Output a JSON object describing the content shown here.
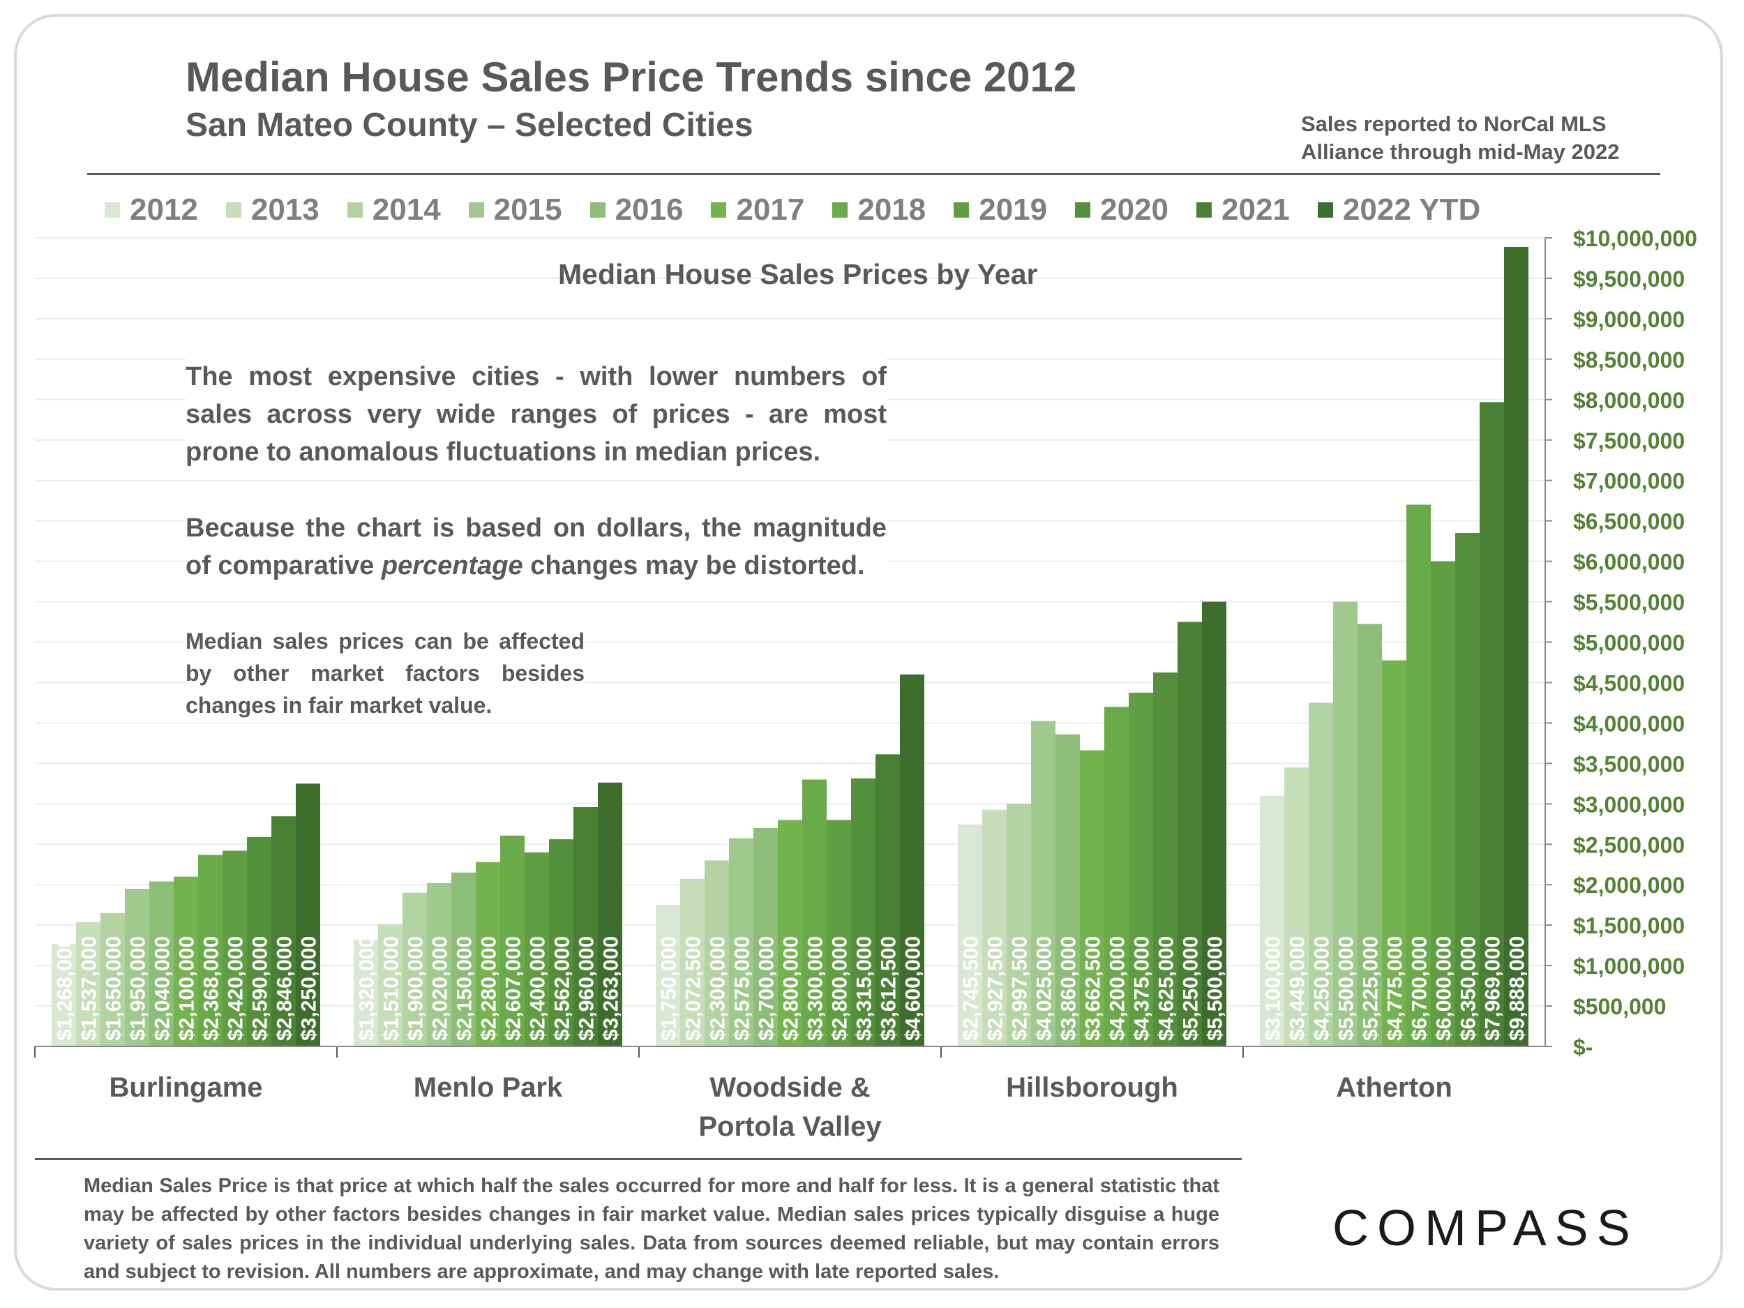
{
  "header": {
    "title": "Median House Sales Price Trends since 2012",
    "subtitle": "San Mateo County – Selected Cities",
    "source_line1": "Sales reported to NorCal MLS",
    "source_line2": "Alliance through mid-May 2022"
  },
  "notes": {
    "note1": "The most expensive cities - with lower numbers of sales across very wide ranges of prices - are most prone to anomalous fluctuations in median prices.",
    "note2_part1": "Because the chart is based on dollars, the magnitude of comparative ",
    "note2_italic": "percentage",
    "note2_part2": " changes may be distorted.",
    "note3": "Median sales prices can be affected by other market factors besides changes in fair market value."
  },
  "footnote": "Median Sales Price is that price at which half the sales occurred for more and half for less. It is a general statistic that may be affected by other factors besides changes in fair market value. Median sales prices typically disguise a huge variety of sales prices in the individual underlying sales. Data from sources deemed reliable, but may contain errors and subject to revision.  All numbers are approximate, and may change with late reported sales.",
  "logo_text": "COMPASS",
  "chart_data": {
    "type": "bar",
    "title": "Median House Sales Prices by Year",
    "categories": [
      "Burlingame",
      "Menlo Park",
      "Woodside & Portola Valley",
      "Hillsborough",
      "Atherton"
    ],
    "category_lines": [
      [
        "Burlingame"
      ],
      [
        "Menlo Park"
      ],
      [
        "Woodside &",
        "Portola Valley"
      ],
      [
        "Hillsborough"
      ],
      [
        "Atherton"
      ]
    ],
    "series": [
      {
        "name": "2012",
        "color": "#d9e8d2",
        "values": [
          1268000,
          1320000,
          1750000,
          2745500,
          3100000
        ]
      },
      {
        "name": "2013",
        "color": "#c6deba",
        "values": [
          1537000,
          1510000,
          2072500,
          2927500,
          3449000
        ]
      },
      {
        "name": "2014",
        "color": "#b3d3a3",
        "values": [
          1650000,
          1900000,
          2300000,
          2997500,
          4250000
        ]
      },
      {
        "name": "2015",
        "color": "#a0c98d",
        "values": [
          1950000,
          2020000,
          2575000,
          4025000,
          5500000
        ]
      },
      {
        "name": "2016",
        "color": "#8cbe77",
        "values": [
          2040000,
          2150000,
          2700000,
          3860000,
          5225000
        ]
      },
      {
        "name": "2017",
        "color": "#74b34f",
        "values": [
          2100000,
          2280000,
          2800000,
          3662500,
          4775000
        ]
      },
      {
        "name": "2018",
        "color": "#6aab49",
        "values": [
          2368000,
          2607000,
          3300000,
          4200000,
          6700000
        ]
      },
      {
        "name": "2019",
        "color": "#5f9e42",
        "values": [
          2420000,
          2400000,
          2800000,
          4375000,
          6000000
        ]
      },
      {
        "name": "2020",
        "color": "#548f3b",
        "values": [
          2590000,
          2562000,
          3315000,
          4625000,
          6350000
        ]
      },
      {
        "name": "2021",
        "color": "#4a8034",
        "values": [
          2846000,
          2960000,
          3612500,
          5250000,
          7969000
        ]
      },
      {
        "name": "2022 YTD",
        "color": "#3e6e2c",
        "values": [
          3250000,
          3263000,
          4600000,
          5500000,
          9888000
        ]
      }
    ],
    "data_labels": [
      [
        "$1,268,000",
        "$1,537,000",
        "$1,650,000",
        "$1,950,000",
        "$2,040,000",
        "$2,100,000",
        "$2,368,000",
        "$2,420,000",
        "$2,590,000",
        "$2,846,000",
        "$3,250,000"
      ],
      [
        "$1,320,000",
        "$1,510,000",
        "$1,900,000",
        "$2,020,000",
        "$2,150,000",
        "$2,280,000",
        "$2,607,000",
        "$2,400,000",
        "$2,562,000",
        "$2,960,000",
        "$3,263,000"
      ],
      [
        "$1,750,000",
        "$2,072,500",
        "$2,300,000",
        "$2,575,000",
        "$2,700,000",
        "$2,800,000",
        "$3,300,000",
        "$2,800,000",
        "$3,315,000",
        "$3,612,500",
        "$4,600,000"
      ],
      [
        "$2,745,500",
        "$2,927,500",
        "$2,997,500",
        "$4,025,000",
        "$3,860,000",
        "$3,662,500",
        "$4,200,000",
        "$4,375,000",
        "$4,625,000",
        "$5,250,000",
        "$5,500,000"
      ],
      [
        "$3,100,000",
        "$3,449,000",
        "$4,250,000",
        "$5,500,000",
        "$5,225,000",
        "$4,775,000",
        "$6,700,000",
        "$6,000,000",
        "$6,350,000",
        "$7,969,000",
        "$9,888,000"
      ]
    ],
    "ylim": [
      0,
      10000000
    ],
    "yticks": [
      0,
      500000,
      1000000,
      1500000,
      2000000,
      2500000,
      3000000,
      3500000,
      4000000,
      4500000,
      5000000,
      5500000,
      6000000,
      6500000,
      7000000,
      7500000,
      8000000,
      8500000,
      9000000,
      9500000,
      10000000
    ],
    "ytick_labels": [
      "$-",
      "$500,000",
      "$1,000,000",
      "$1,500,000",
      "$2,000,000",
      "$2,500,000",
      "$3,000,000",
      "$3,500,000",
      "$4,000,000",
      "$4,500,000",
      "$5,000,000",
      "$5,500,000",
      "$6,000,000",
      "$6,500,000",
      "$7,000,000",
      "$7,500,000",
      "$8,000,000",
      "$8,500,000",
      "$9,000,000",
      "$9,500,000",
      "$10,000,000"
    ],
    "y_axis_side": "right",
    "grid": true,
    "legend_position": "top",
    "colors": {
      "axis_label": "#548235",
      "category_label": "#595959",
      "data_label": "#ffffff",
      "gridline": "#ececec"
    }
  }
}
